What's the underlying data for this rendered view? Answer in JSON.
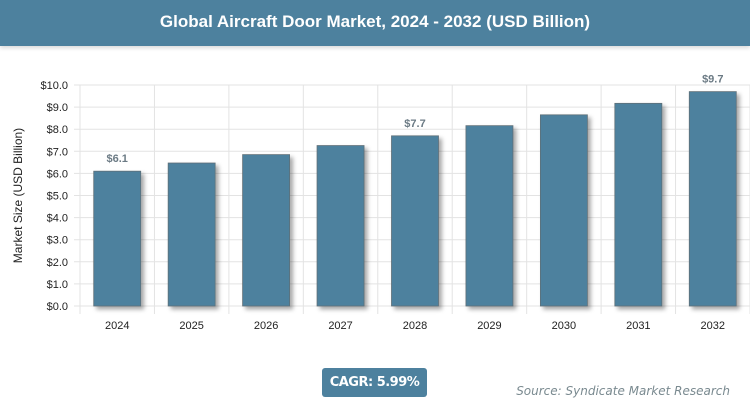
{
  "header": {
    "title": "Global Aircraft Door Market, 2024 - 2032 (USD Billion)"
  },
  "chart_data": {
    "type": "bar",
    "title": "Global Aircraft Door Market, 2024 - 2032 (USD Billion)",
    "xlabel": "",
    "ylabel": "Market Size (USD Billion)",
    "categories": [
      "2024",
      "2025",
      "2026",
      "2027",
      "2028",
      "2029",
      "2030",
      "2031",
      "2032"
    ],
    "values": [
      6.1,
      6.47,
      6.85,
      7.26,
      7.7,
      8.16,
      8.65,
      9.17,
      9.7
    ],
    "data_labels": {
      "0": "$6.1",
      "4": "$7.7",
      "8": "$9.7"
    },
    "ylim": [
      0,
      10
    ],
    "yticks": [
      "$0.0",
      "$1.0",
      "$2.0",
      "$3.0",
      "$4.0",
      "$5.0",
      "$6.0",
      "$7.0",
      "$8.0",
      "$9.0",
      "$10.0"
    ],
    "grid": true,
    "bar_color": "#4d819e"
  },
  "footer": {
    "cagr": "CAGR: 5.99%",
    "source": "Source: Syndicate Market Research"
  }
}
